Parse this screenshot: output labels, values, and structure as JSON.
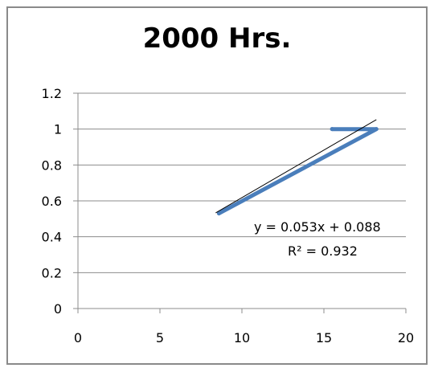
{
  "chart_data": {
    "type": "line",
    "title": "2000 Hrs.",
    "xlabel": "",
    "ylabel": "",
    "xlim": [
      0,
      20
    ],
    "ylim": [
      0,
      1.2
    ],
    "x_ticks": [
      "0",
      "5",
      "10",
      "15",
      "20"
    ],
    "y_ticks": [
      "0",
      "0.2",
      "0.4",
      "0.6",
      "0.8",
      "1",
      "1.2"
    ],
    "grid": "horizontal",
    "legend": "none",
    "series": [
      {
        "x": [
          8.6,
          18.2,
          15.5
        ],
        "y": [
          0.53,
          1.0,
          1.0
        ],
        "color": "#4a7ebb"
      }
    ],
    "trendline": {
      "slope": 0.053,
      "intercept": 0.088,
      "x_range": [
        8.6,
        18.2
      ],
      "color": "#000000",
      "equation": "y = 0.053x + 0.088",
      "r_squared": "R² = 0.932"
    }
  }
}
